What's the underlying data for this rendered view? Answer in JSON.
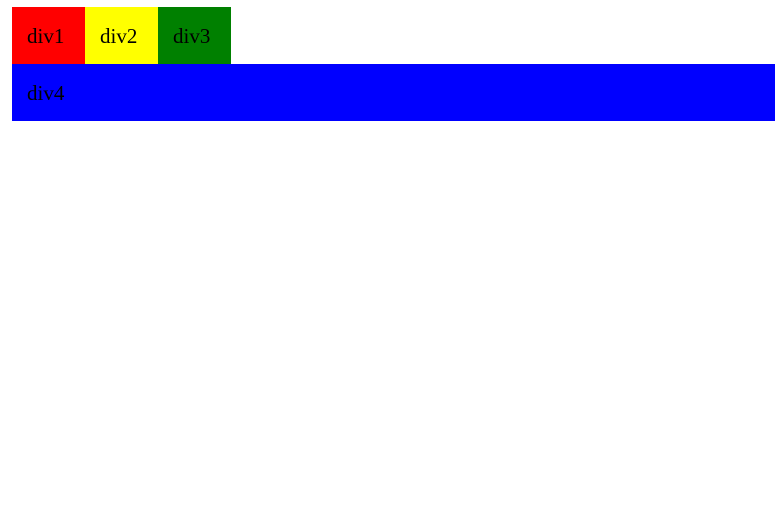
{
  "blocks": {
    "top": [
      {
        "label": "div1",
        "color": "#ff0000"
      },
      {
        "label": "div2",
        "color": "#ffff00"
      },
      {
        "label": "div3",
        "color": "#008000"
      }
    ],
    "bottom": {
      "label": "div4",
      "color": "#0000ff"
    }
  }
}
